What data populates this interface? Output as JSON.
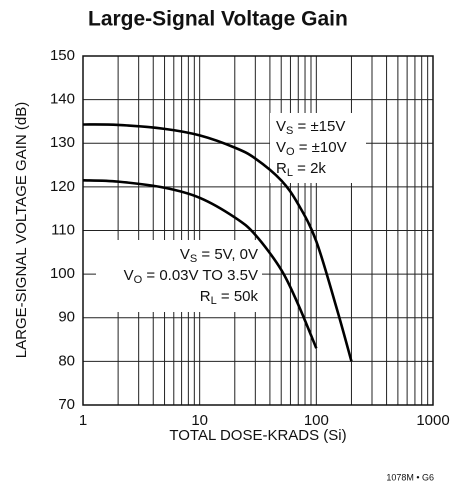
{
  "chart_data": {
    "type": "line",
    "title": "Large-Signal Voltage Gain",
    "x_label": "TOTAL DOSE-KRADS (Si)",
    "y_label": "LARGE-SIGNAL VOLTAGE GAIN (dB)",
    "footnote": "1078M • G6",
    "xscale": "log",
    "xlim": [
      1,
      1000
    ],
    "xticks": [
      1,
      10,
      100,
      1000
    ],
    "xminor": [
      2,
      3,
      4,
      5,
      6,
      7,
      8,
      9,
      20,
      30,
      40,
      50,
      60,
      70,
      80,
      90,
      200,
      300,
      400,
      500,
      600,
      700,
      800,
      900
    ],
    "ylim": [
      70,
      150
    ],
    "yticks": [
      70,
      80,
      90,
      100,
      110,
      120,
      130,
      140,
      150
    ],
    "grid": true,
    "series": [
      {
        "name": "VS = ±15V",
        "color": "#000000",
        "x": [
          1,
          2,
          5,
          10,
          20,
          30,
          50,
          70,
          100,
          150,
          200
        ],
        "values": [
          134.3,
          134.2,
          133.3,
          131.8,
          129,
          126.5,
          121.5,
          116,
          107.5,
          92,
          80
        ]
      },
      {
        "name": "VS = 5V, 0V",
        "color": "#000000",
        "x": [
          1,
          2,
          5,
          10,
          20,
          30,
          50,
          70,
          100
        ],
        "values": [
          121.5,
          121.2,
          119.8,
          117.5,
          113,
          109,
          101,
          93,
          83
        ]
      }
    ],
    "annotations": [
      {
        "lines": [
          {
            "main": "V",
            "sub": "S",
            "rest": " = ±15V"
          },
          {
            "main": "V",
            "sub": "O",
            "rest": " = ±10V"
          },
          {
            "main": "R",
            "sub": "L",
            "rest": " = 2k"
          }
        ]
      },
      {
        "lines": [
          {
            "main": "V",
            "sub": "S",
            "rest": " = 5V, 0V"
          },
          {
            "main": "V",
            "sub": "O",
            "rest": " = 0.03V TO 3.5V"
          },
          {
            "main": "R",
            "sub": "L",
            "rest": " = 50k"
          }
        ]
      }
    ]
  }
}
